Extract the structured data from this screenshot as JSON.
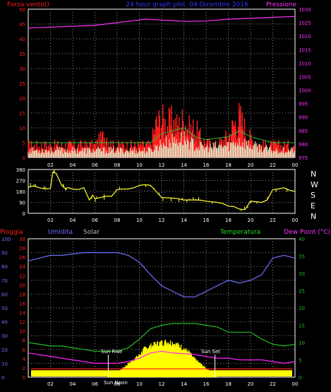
{
  "colors": {
    "background": "#000000",
    "grid": "#8a8a8a",
    "wind_speed": "#ff1f1f",
    "wind_gust": "#2fbf2f",
    "wind_dir": "#ffff33",
    "pressure": "#ff33ff",
    "humidity": "#6f6fff",
    "temperature": "#22bb22",
    "dew_point": "#ff22ff",
    "solar": "#ffff00",
    "rain": "#ff2020",
    "white": "#ffffff"
  },
  "header": {
    "left_label": "Forza vento()",
    "title": "24 hour graph plot. 04 Dicembre 2016",
    "right_label": "Pressione"
  },
  "panel2": {
    "compass": [
      "N",
      "W",
      "S",
      "E",
      "N"
    ]
  },
  "panel3": {
    "labels": {
      "rain": "Pioggia",
      "humidity": "Umidita",
      "solar": "Solar",
      "temperature": "Temperatura",
      "dew": "Dew Point (°C)"
    },
    "annotations": {
      "sun_rise": "Sun Rise",
      "sun_noon": "Sun Noon",
      "sun_set": "Sun Set"
    }
  },
  "chart_data": [
    {
      "type": "line",
      "title": "24 hour graph plot. 04 Dicembre 2016",
      "x_ticks": [
        "02",
        "04",
        "06",
        "08",
        "10",
        "12",
        "14",
        "16",
        "18",
        "20",
        "22",
        "00"
      ],
      "left_axis": {
        "label": "Forza vento()",
        "range": [
          0,
          50
        ],
        "ticks": [
          0,
          5,
          10,
          15,
          20,
          25,
          30,
          35,
          40,
          45,
          50
        ]
      },
      "right_axis": {
        "label": "Pressione",
        "range": [
          975,
          1030
        ],
        "ticks": [
          975,
          980,
          985,
          990,
          995,
          1000,
          1005,
          1010,
          1015,
          1020,
          1025,
          1030
        ]
      },
      "series": [
        {
          "name": "Pressione",
          "x": [
            0,
            3,
            6,
            9,
            10.5,
            12,
            14,
            16,
            18,
            20,
            22,
            24
          ],
          "y": [
            1023,
            1023.5,
            1024,
            1025.5,
            1026.3,
            1026,
            1025.5,
            1025.6,
            1026.3,
            1026.6,
            1027,
            1027.3
          ]
        }
      ],
      "wind_speed": {
        "x": [
          0,
          1.5,
          3,
          4,
          5,
          6,
          7,
          7.5,
          8,
          9,
          10,
          11,
          11.5,
          12,
          12.5,
          13,
          13.5,
          14,
          14.5,
          15,
          15.5,
          16,
          17,
          18,
          18.5,
          19,
          19.5,
          20,
          20.5,
          21,
          22,
          23,
          24
        ],
        "y": [
          5,
          5,
          5,
          5,
          5,
          5,
          10,
          5,
          5,
          5,
          5,
          5,
          14,
          16,
          14,
          15,
          13,
          16,
          12,
          12,
          8,
          6,
          5,
          9,
          14,
          17,
          12,
          8,
          6,
          5,
          5,
          5,
          5
        ]
      },
      "wind_gust": {
        "x": [
          0,
          2,
          4,
          6,
          8,
          10,
          11,
          12,
          13,
          14,
          15,
          16,
          18,
          19,
          20,
          21,
          22,
          24
        ],
        "y": [
          3,
          3,
          3,
          3,
          3,
          3,
          3,
          6,
          7,
          8,
          5,
          4,
          5,
          7,
          5,
          4,
          3,
          3
        ]
      },
      "gust_labels": []
    },
    {
      "type": "scatter",
      "title": "",
      "x_ticks": [
        "02",
        "04",
        "06",
        "08",
        "10",
        "12",
        "14",
        "16",
        "18",
        "20",
        "22",
        "00"
      ],
      "left_axis": {
        "range": [
          0,
          360
        ],
        "ticks": [
          0,
          90,
          180,
          270,
          360
        ]
      },
      "series": [
        {
          "name": "",
          "x": [
            0,
            0.5,
            1,
            1.5,
            2,
            2.2,
            2.5,
            3,
            3.3,
            3.6,
            4,
            4.5,
            5,
            5.5,
            5.8,
            6,
            6.5,
            7,
            7.5,
            8,
            8.5,
            9,
            9.5,
            10,
            10.5,
            11,
            12,
            13,
            13.5,
            14,
            14.5,
            15,
            15.5,
            16,
            17,
            17.5,
            18,
            18.5,
            19,
            19.5,
            20,
            20.5,
            21,
            21.5,
            22,
            22.5,
            23,
            23.5,
            24
          ],
          "y": [
            215,
            225,
            210,
            200,
            205,
            335,
            330,
            230,
            205,
            210,
            200,
            195,
            210,
            110,
            150,
            120,
            130,
            140,
            140,
            195,
            200,
            200,
            210,
            230,
            235,
            230,
            130,
            125,
            120,
            110,
            110,
            110,
            108,
            100,
            90,
            80,
            60,
            55,
            35,
            30,
            100,
            95,
            90,
            110,
            195,
            200,
            210,
            190,
            180
          ]
        }
      ]
    },
    {
      "type": "line",
      "title": "",
      "x_ticks": [
        "02",
        "04",
        "06",
        "08",
        "10",
        "12",
        "14",
        "16",
        "18",
        "20",
        "22",
        "00"
      ],
      "axes": {
        "rain": {
          "label": "Pioggia",
          "range": [
            0,
            100
          ],
          "ticks": [
            0,
            10,
            20,
            30,
            40,
            50,
            60,
            70,
            80,
            90,
            100
          ]
        },
        "humidity": {
          "label": "Umidita",
          "range": [
            0,
            30
          ],
          "ticks": [
            0,
            2,
            4,
            6,
            8,
            10,
            12,
            14,
            16,
            18,
            20,
            22,
            24,
            26,
            28,
            30
          ]
        },
        "solar": {
          "label": "Solar",
          "range": [
            0,
            30
          ],
          "ticks": [
            0,
            2,
            4,
            6,
            8,
            10,
            12,
            14,
            16,
            18,
            20,
            22,
            24,
            26,
            28,
            30
          ]
        },
        "temperature": {
          "label": "Temperatura",
          "range": [
            0,
            40
          ],
          "ticks": [
            0,
            5,
            10,
            15,
            20,
            25,
            30,
            35,
            40
          ]
        },
        "dew": {
          "label": "Dew Point (°C)",
          "range": [
            0,
            40
          ],
          "ticks": [
            0,
            5,
            10,
            15,
            20,
            25,
            30,
            35,
            40
          ]
        }
      },
      "series": [
        {
          "name": "Umidita",
          "x": [
            0,
            1,
            2,
            3,
            4,
            5,
            6,
            7,
            8,
            9,
            10,
            11,
            12,
            13,
            14,
            15,
            16,
            17,
            18,
            19,
            20,
            21,
            22,
            23,
            24
          ],
          "y": [
            84,
            86,
            88,
            88,
            89,
            90,
            90,
            90,
            90,
            88,
            83,
            74,
            66,
            62,
            58,
            58,
            62,
            66,
            70,
            68,
            70,
            74,
            86,
            88,
            86
          ]
        },
        {
          "name": "Temperatura",
          "x": [
            0,
            1,
            2,
            3,
            4,
            5,
            6,
            7,
            8,
            9,
            10,
            11,
            12,
            13,
            14,
            15,
            16,
            17,
            18,
            19,
            20,
            21,
            22,
            23,
            24
          ],
          "y": [
            10,
            9.5,
            9,
            9,
            8.5,
            8,
            7.5,
            7.5,
            7.5,
            8.5,
            11,
            14,
            15,
            15.5,
            15.5,
            15.5,
            15,
            14.5,
            13,
            13,
            13,
            11,
            9.5,
            9,
            9.5
          ]
        },
        {
          "name": "Dew Point (°C)",
          "x": [
            0,
            1,
            2,
            3,
            4,
            5,
            6,
            7,
            8,
            9,
            10,
            11,
            12,
            13,
            14,
            15,
            16,
            17,
            18,
            19,
            20,
            21,
            22,
            23,
            24
          ],
          "y": [
            7,
            6.5,
            6,
            5.5,
            5,
            4.5,
            4,
            4,
            4,
            4.5,
            5.5,
            7,
            7.5,
            7,
            6.8,
            6.5,
            6,
            5.5,
            5.5,
            5,
            5,
            5,
            4.5,
            4,
            4.5
          ]
        },
        {
          "name": "Solar",
          "x": [
            0,
            7,
            8,
            9,
            10,
            10.5,
            11,
            11.5,
            12,
            12.5,
            13,
            13.5,
            14,
            14.5,
            15,
            15.5,
            16,
            16.5,
            17,
            24
          ],
          "y": [
            0,
            0,
            1,
            3,
            5,
            6.5,
            7,
            7.5,
            7.8,
            8,
            7.8,
            7.2,
            6.5,
            5.5,
            4,
            3,
            2,
            1,
            0,
            0
          ]
        },
        {
          "name": "Pioggia",
          "x": [
            0,
            24
          ],
          "y": [
            5,
            5
          ]
        }
      ]
    }
  ]
}
